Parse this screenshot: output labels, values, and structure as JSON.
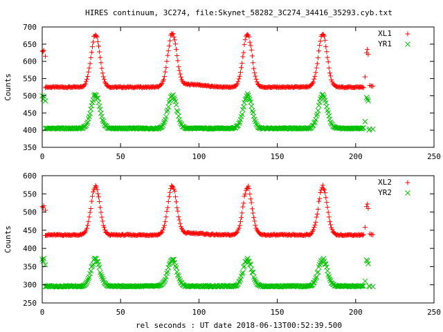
{
  "figure": {
    "title": "HIRES continuum, 3C274, file:Skynet_58282_3C274_34416_35293.cyb.txt",
    "xlabel": "rel seconds : UT date 2018-06-13T00:52:39.500"
  },
  "colors": {
    "series1": "#ff0000",
    "series2": "#00c000"
  },
  "chart_data": [
    {
      "type": "scatter",
      "title": "HIRES continuum, 3C274, file:Skynet_58282_3C274_34416_35293.cyb.txt",
      "xlabel": "",
      "ylabel": "Counts",
      "xlim": [
        0,
        250
      ],
      "ylim": [
        350,
        700
      ],
      "xticks": [
        0,
        50,
        100,
        150,
        200,
        250
      ],
      "yticks": [
        350,
        400,
        450,
        500,
        550,
        600,
        650,
        700
      ],
      "grid": false,
      "legend": "top-right",
      "scan": {
        "baseline": 525,
        "peak_amp": 155,
        "peak_centers": [
          34,
          83,
          131,
          179
        ],
        "peak_sigma": 2.8,
        "x_start": 2,
        "x_end": 205,
        "step": 0.5,
        "bump_center": 95,
        "bump_amp": 8,
        "bump_sigma": 8
      },
      "series": [
        {
          "name": "XL1",
          "marker": "plus",
          "color": "#ff0000",
          "cal_points": [
            [
              0,
              630
            ],
            [
              1,
              632
            ],
            [
              0.5,
              628
            ],
            [
              2,
              615
            ],
            [
              206,
              555
            ],
            [
              207,
              625
            ],
            [
              207.5,
              635
            ],
            [
              208,
              620
            ],
            [
              209,
              530
            ],
            [
              210,
              528
            ],
            [
              211,
              528
            ]
          ]
        },
        {
          "name": "YR1",
          "marker": "cross",
          "color": "#00c000",
          "scan": {
            "baseline": 405,
            "peak_amp": 97,
            "bump_amp": 0
          },
          "cal_points": [
            [
              0,
              500
            ],
            [
              1,
              498
            ],
            [
              0.5,
              490
            ],
            [
              2,
              485
            ],
            [
              206,
              425
            ],
            [
              207,
              495
            ],
            [
              207.5,
              490
            ],
            [
              208,
              485
            ],
            [
              208.5,
              400
            ],
            [
              209,
              403
            ],
            [
              211,
              403
            ]
          ]
        }
      ]
    },
    {
      "type": "scatter",
      "title": "",
      "xlabel": "rel seconds : UT date 2018-06-13T00:52:39.500",
      "ylabel": "Counts",
      "xlim": [
        0,
        250
      ],
      "ylim": [
        250,
        600
      ],
      "xticks": [
        0,
        50,
        100,
        150,
        200,
        250
      ],
      "yticks": [
        250,
        300,
        350,
        400,
        450,
        500,
        550,
        600
      ],
      "grid": false,
      "legend": "top-right",
      "scan": {
        "baseline": 437,
        "peak_amp": 133,
        "peak_centers": [
          34,
          83,
          131,
          179
        ],
        "peak_sigma": 2.8,
        "x_start": 2,
        "x_end": 205,
        "step": 0.5,
        "bump_center": 95,
        "bump_amp": 5,
        "bump_sigma": 8
      },
      "series": [
        {
          "name": "XL2",
          "marker": "plus",
          "color": "#ff0000",
          "cal_points": [
            [
              0,
              515
            ],
            [
              1,
              517
            ],
            [
              0.5,
              512
            ],
            [
              2,
              505
            ],
            [
              206,
              458
            ],
            [
              207,
              515
            ],
            [
              207.5,
              522
            ],
            [
              208,
              510
            ],
            [
              209,
              440
            ],
            [
              210,
              438
            ],
            [
              211,
              438
            ]
          ]
        },
        {
          "name": "YR2",
          "marker": "cross",
          "color": "#00c000",
          "scan": {
            "baseline": 296,
            "peak_amp": 74,
            "bump_amp": 0
          },
          "cal_points": [
            [
              0,
              370
            ],
            [
              1,
              372
            ],
            [
              0.5,
              365
            ],
            [
              2,
              355
            ],
            [
              206,
              310
            ],
            [
              207,
              368
            ],
            [
              207.5,
              365
            ],
            [
              208,
              358
            ],
            [
              208.5,
              297
            ],
            [
              209,
              295
            ],
            [
              211,
              295
            ]
          ]
        }
      ]
    }
  ]
}
